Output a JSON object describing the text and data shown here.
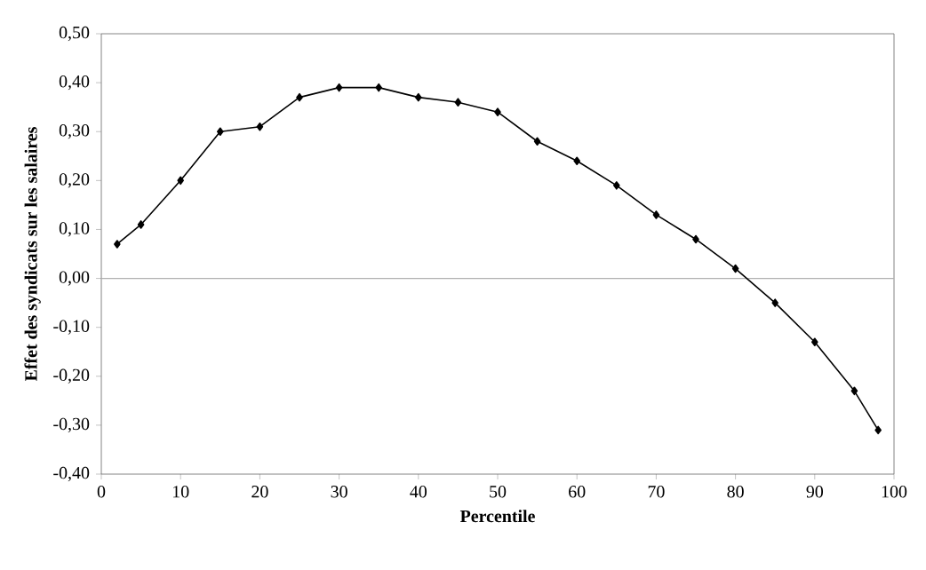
{
  "chart_data": {
    "type": "line",
    "xlabel": "Percentile",
    "ylabel": "Effet des syndicats sur les salaires",
    "x": [
      2,
      5,
      10,
      15,
      20,
      25,
      30,
      35,
      40,
      45,
      50,
      55,
      60,
      65,
      70,
      75,
      80,
      85,
      90,
      95,
      98
    ],
    "series": [
      {
        "color": "#000000",
        "values": [
          0.07,
          0.11,
          0.2,
          0.3,
          0.31,
          0.37,
          0.39,
          0.39,
          0.37,
          0.36,
          0.34,
          0.28,
          0.24,
          0.19,
          0.13,
          0.08,
          0.02,
          -0.05,
          -0.13,
          -0.23,
          -0.31
        ]
      }
    ],
    "xlim": [
      0,
      100
    ],
    "xticks": [
      0,
      10,
      20,
      30,
      40,
      50,
      60,
      70,
      80,
      90,
      100
    ],
    "ylim": [
      -0.4,
      0.5
    ],
    "yticks": [
      {
        "value": -0.4,
        "label": "-0,40"
      },
      {
        "value": -0.3,
        "label": "-0,30"
      },
      {
        "value": -0.2,
        "label": "-0,20"
      },
      {
        "value": -0.1,
        "label": "-0,10"
      },
      {
        "value": 0,
        "label": "0,00"
      },
      {
        "value": 0.1,
        "label": "0,10"
      },
      {
        "value": 0.2,
        "label": "0,20"
      },
      {
        "value": 0.3,
        "label": "0,30"
      },
      {
        "value": 0.4,
        "label": "0,40"
      },
      {
        "value": 0.5,
        "label": "0,50"
      }
    ],
    "ref_lines": [
      {
        "axis": "y",
        "value": 0,
        "color": "#b0b0b0"
      }
    ],
    "marker": "diamond",
    "line_style": "solid"
  }
}
